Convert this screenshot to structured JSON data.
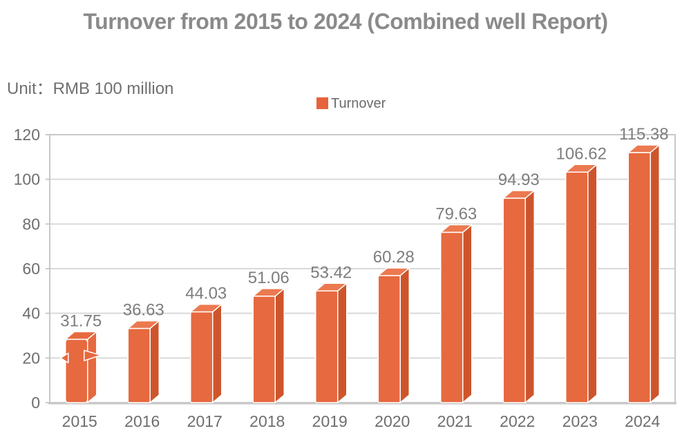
{
  "title": "Turnover from 2015 to 2024 (Combined well Report)",
  "unit_label": "Unit：RMB 100 million",
  "legend": {
    "label": "Turnover",
    "swatch_color": "#e7633b"
  },
  "colors": {
    "title_text": "#8a8a8a",
    "axis_text": "#6e6e6e",
    "value_label_text": "#7d7d7d",
    "gridline": "#d9d9d9",
    "plot_border": "#c8c8c8",
    "bar_front": "#e7693f",
    "bar_top": "#ec7950",
    "bar_side": "#ce552b",
    "bar_edge": "#ffffff"
  },
  "chart_data": {
    "type": "bar",
    "title": "Turnover from 2015 to 2024 (Combined well Report)",
    "categories": [
      "2015",
      "2016",
      "2017",
      "2018",
      "2019",
      "2020",
      "2021",
      "2022",
      "2023",
      "2024"
    ],
    "series": [
      {
        "name": "Turnover",
        "values": [
          31.75,
          36.63,
          44.03,
          51.06,
          53.42,
          60.28,
          79.63,
          94.93,
          106.62,
          115.38
        ]
      }
    ],
    "value_labels": [
      "31.75",
      "36.63",
      "44.03",
      "51.06",
      "53.42",
      "60.28",
      "79.63",
      "94.93",
      "106.62",
      "115.38"
    ],
    "xlabel": "",
    "ylabel": "",
    "ylim": [
      0,
      120
    ],
    "ytick_step": 20,
    "yticks": [
      "0",
      "20",
      "40",
      "60",
      "80",
      "100",
      "120"
    ],
    "grid": true,
    "legend_position": "top-center",
    "style": "3d-extruded-bars",
    "first_bar_uniform_color": true
  }
}
